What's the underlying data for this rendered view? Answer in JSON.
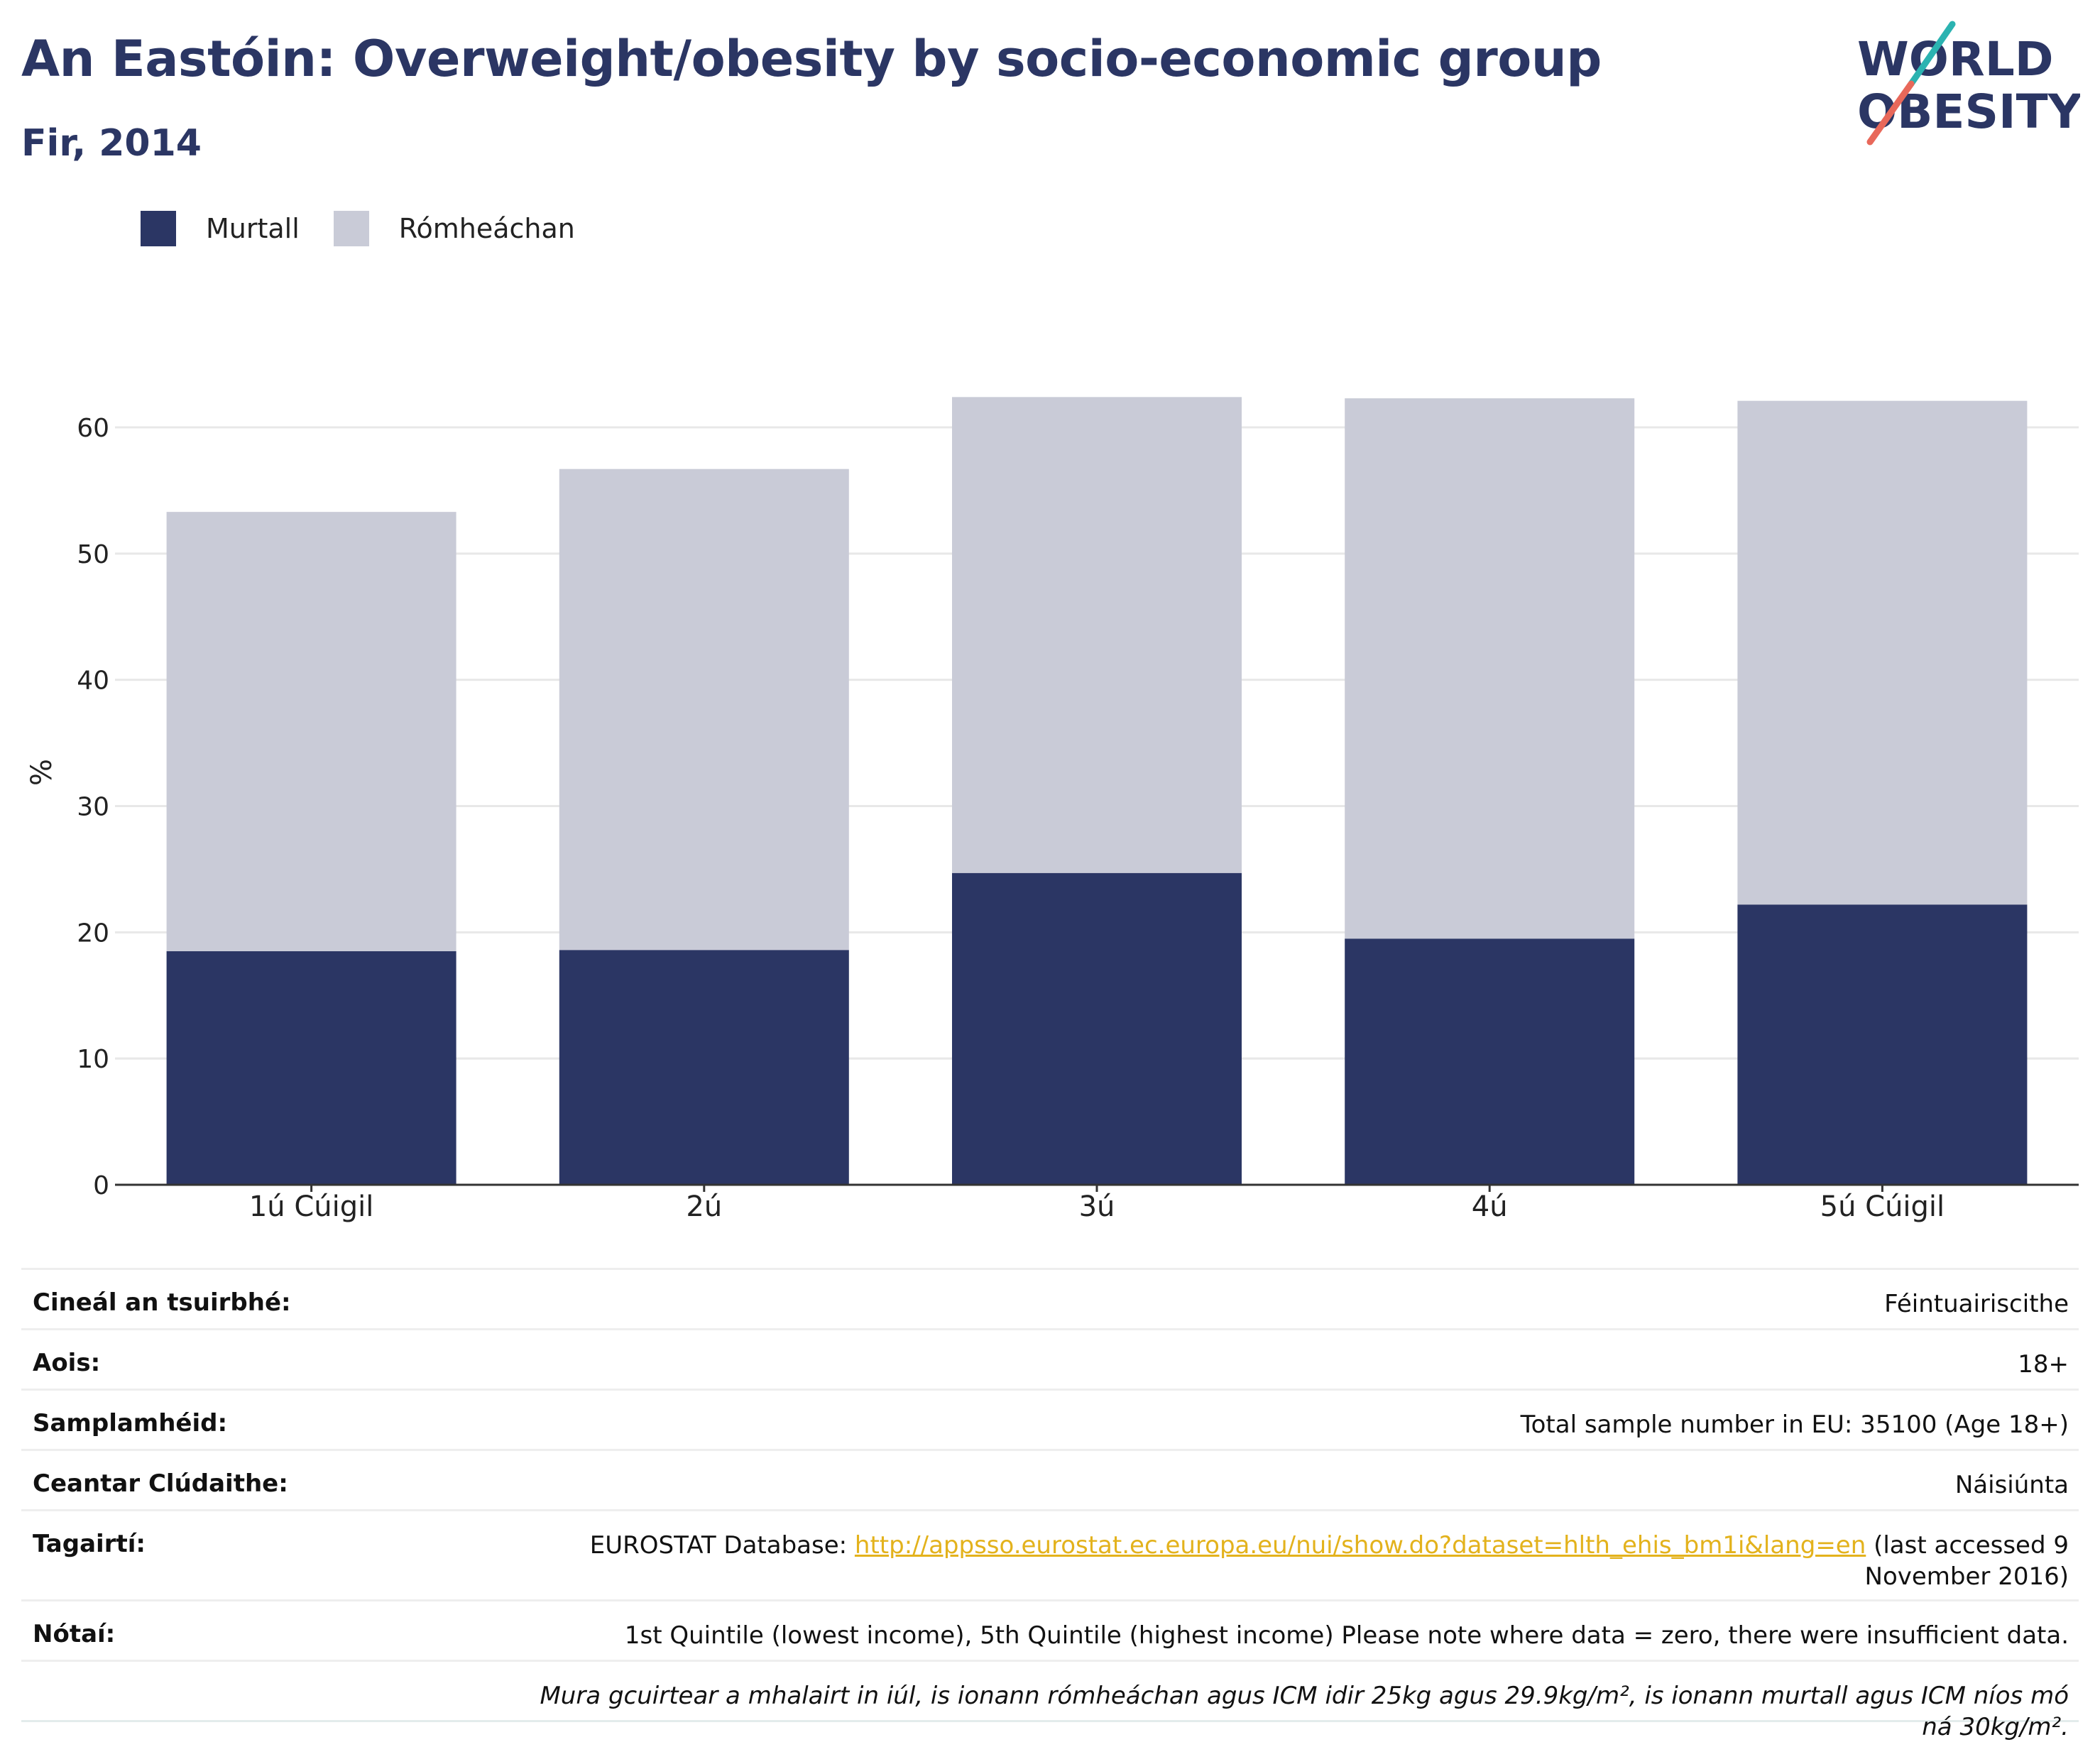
{
  "title": "An Eastóin: Overweight/obesity by socio-economic group",
  "subtitle": "Fir, 2014",
  "logo": {
    "line1": "WORLD",
    "line2": "OBESITY"
  },
  "legend": [
    {
      "label": "Murtall",
      "color": "#2b3664"
    },
    {
      "label": "Rómheáchan",
      "color": "#c9cbd7"
    }
  ],
  "chart_data": {
    "type": "bar",
    "stacked": true,
    "categories": [
      "1ú Cúigil",
      "2ú",
      "3ú",
      "4ú",
      "5ú Cúigil"
    ],
    "series": [
      {
        "name": "Murtall",
        "color": "#2b3664",
        "values": [
          18.5,
          18.6,
          24.7,
          19.5,
          22.2
        ]
      },
      {
        "name": "Rómheáchan",
        "color": "#c9cbd7",
        "values": [
          34.8,
          38.1,
          37.7,
          42.8,
          39.9
        ]
      }
    ],
    "ylabel": "%",
    "xlabel": "",
    "ylim": [
      0,
      62.5
    ],
    "yticks": [
      0,
      10,
      20,
      30,
      40,
      50,
      60
    ],
    "grid": true
  },
  "info": {
    "survey_type": {
      "label": "Cineál an tsuirbhé:",
      "value": "Féintuairiscithe"
    },
    "age": {
      "label": "Aois:",
      "value": "18+"
    },
    "sample_size": {
      "label": "Samplamhéid:",
      "value": "Total sample number in EU: 35100 (Age 18+)"
    },
    "area": {
      "label": "Ceantar Clúdaithe:",
      "value": "Náisiúnta"
    },
    "references": {
      "label": "Tagairtí:",
      "prefix": "EUROSTAT Database: ",
      "link": "http://appsso.eurostat.ec.europa.eu/nui/show.do?dataset=hlth_ehis_bm1i&lang=en",
      "suffix": " (last accessed 9 November 2016)"
    },
    "notes": {
      "label": "Nótaí:",
      "value": "1st Quintile (lowest income), 5th Quintile (highest income) Please note where data = zero, there were insufficient data."
    },
    "definition": "Mura gcuirtear a mhalairt in iúl, is ionann rómheáchan agus ICM idir 25kg agus 29.9kg/m², is ionann murtall agus ICM níos mó ná 30kg/m²."
  }
}
